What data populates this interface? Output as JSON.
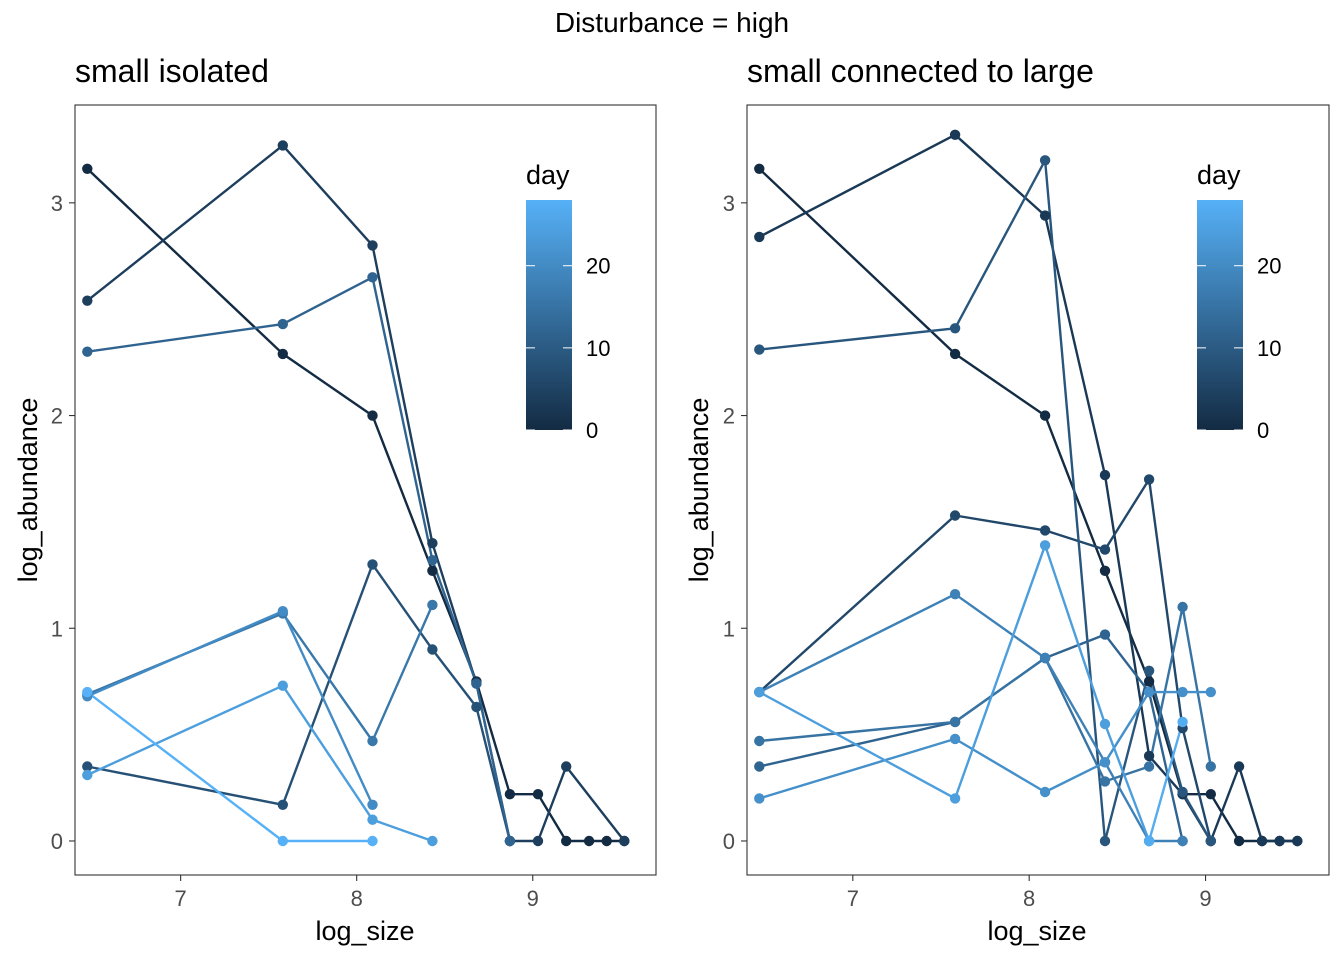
{
  "figure": {
    "title": "Disturbance = high"
  },
  "chart_data": [
    {
      "type": "line",
      "title": "small isolated",
      "xlabel": "log_size",
      "ylabel": "log_abundance",
      "xlim": [
        6.4,
        9.7
      ],
      "ylim": [
        -0.16,
        3.46
      ],
      "xticks": [
        7,
        8,
        9
      ],
      "yticks": [
        0,
        1,
        2,
        3
      ],
      "grid": false,
      "legend": {
        "title": "day",
        "position": "top-right",
        "min": 0,
        "max": 28,
        "ticks": [
          0,
          10,
          20
        ],
        "low_color": "#132B43",
        "high_color": "#56B1F7"
      },
      "series": [
        {
          "day": 0,
          "x": [
            6.47,
            7.58,
            8.09,
            8.43,
            8.68,
            8.87,
            9.03,
            9.19,
            9.32,
            9.42,
            9.52
          ],
          "y": [
            3.16,
            2.29,
            2.0,
            1.27,
            0.75,
            0.22,
            0.22,
            0.0,
            0.0,
            0.0,
            0.0
          ]
        },
        {
          "day": 4,
          "x": [
            6.47,
            7.58,
            8.09,
            8.43,
            8.68,
            8.87,
            9.03,
            9.19,
            9.52
          ],
          "y": [
            2.54,
            3.27,
            2.8,
            1.4,
            0.74,
            0.0,
            0.0,
            0.35,
            0.0
          ]
        },
        {
          "day": 8,
          "x": [
            6.47,
            7.58,
            8.09,
            8.43,
            8.68,
            8.87
          ],
          "y": [
            0.35,
            0.17,
            1.3,
            0.9,
            0.63,
            0.0
          ]
        },
        {
          "day": 12,
          "x": [
            6.47,
            7.58,
            8.09,
            8.43,
            8.68,
            8.87
          ],
          "y": [
            2.3,
            2.43,
            2.65,
            1.32,
            0.74,
            0.0
          ]
        },
        {
          "day": 16,
          "x": [
            6.47,
            7.58,
            8.09,
            8.43
          ],
          "y": [
            0.69,
            1.07,
            0.47,
            1.11
          ]
        },
        {
          "day": 20,
          "x": [
            6.47,
            7.58,
            8.09
          ],
          "y": [
            0.68,
            1.08,
            0.17
          ]
        },
        {
          "day": 24,
          "x": [
            6.47,
            7.58,
            8.09,
            8.43
          ],
          "y": [
            0.31,
            0.73,
            0.1,
            0.0
          ]
        },
        {
          "day": 28,
          "x": [
            6.47,
            7.58,
            8.09
          ],
          "y": [
            0.7,
            0.0,
            0.0
          ]
        }
      ]
    },
    {
      "type": "line",
      "title": "small connected to large",
      "xlabel": "log_size",
      "ylabel": "log_abundance",
      "xlim": [
        6.4,
        9.7
      ],
      "ylim": [
        -0.16,
        3.46
      ],
      "xticks": [
        7,
        8,
        9
      ],
      "yticks": [
        0,
        1,
        2,
        3
      ],
      "grid": false,
      "legend": {
        "title": "day",
        "position": "top-right",
        "min": 0,
        "max": 28,
        "ticks": [
          0,
          10,
          20
        ],
        "low_color": "#132B43",
        "high_color": "#56B1F7"
      },
      "series": [
        {
          "day": 0,
          "x": [
            6.47,
            7.58,
            8.09,
            8.43,
            8.68,
            8.87,
            9.03,
            9.19,
            9.32,
            9.42,
            9.52
          ],
          "y": [
            3.16,
            2.29,
            2.0,
            1.27,
            0.75,
            0.22,
            0.22,
            0.0,
            0.0,
            0.0,
            0.0
          ]
        },
        {
          "day": 3,
          "x": [
            6.47,
            7.58,
            8.09,
            8.43,
            8.68,
            8.87,
            9.03,
            9.19,
            9.32,
            9.42,
            9.52
          ],
          "y": [
            2.84,
            3.32,
            2.94,
            1.72,
            0.4,
            0.22,
            0.0,
            0.35,
            0.0,
            0.0,
            0.0
          ]
        },
        {
          "day": 6,
          "x": [
            6.47,
            7.58,
            8.09,
            8.43,
            8.68,
            8.87,
            9.03
          ],
          "y": [
            0.7,
            1.53,
            1.46,
            1.37,
            1.7,
            0.53,
            0.0
          ]
        },
        {
          "day": 9,
          "x": [
            6.47,
            7.58,
            8.09,
            8.43,
            8.68,
            8.87,
            9.03
          ],
          "y": [
            2.31,
            2.41,
            3.2,
            0.0,
            0.8,
            0.23,
            0.0
          ]
        },
        {
          "day": 12,
          "x": [
            6.47,
            7.58,
            8.09,
            8.43,
            8.68,
            8.87
          ],
          "y": [
            0.35,
            0.56,
            0.86,
            0.97,
            0.7,
            0.0
          ]
        },
        {
          "day": 15,
          "x": [
            6.47,
            7.58,
            8.09,
            8.43,
            8.68,
            8.87,
            9.03
          ],
          "y": [
            0.47,
            0.56,
            0.86,
            0.28,
            0.35,
            1.1,
            0.35
          ]
        },
        {
          "day": 18,
          "x": [
            6.47,
            7.58,
            8.09,
            8.43,
            8.68,
            8.87
          ],
          "y": [
            0.7,
            1.16,
            0.86,
            0.37,
            0.0,
            0.0
          ]
        },
        {
          "day": 21,
          "x": [
            6.47,
            7.58,
            8.09,
            8.43,
            8.68,
            8.87,
            9.03
          ],
          "y": [
            0.2,
            0.48,
            0.23,
            0.37,
            0.7,
            0.7,
            0.7
          ]
        },
        {
          "day": 24,
          "x": [
            6.47,
            7.58,
            8.09,
            8.43,
            8.68
          ],
          "y": [
            0.7,
            0.2,
            1.39,
            0.55,
            0.0
          ]
        },
        {
          "day": 27,
          "x": [
            8.68,
            8.87
          ],
          "y": [
            0.0,
            0.56
          ]
        }
      ]
    }
  ]
}
